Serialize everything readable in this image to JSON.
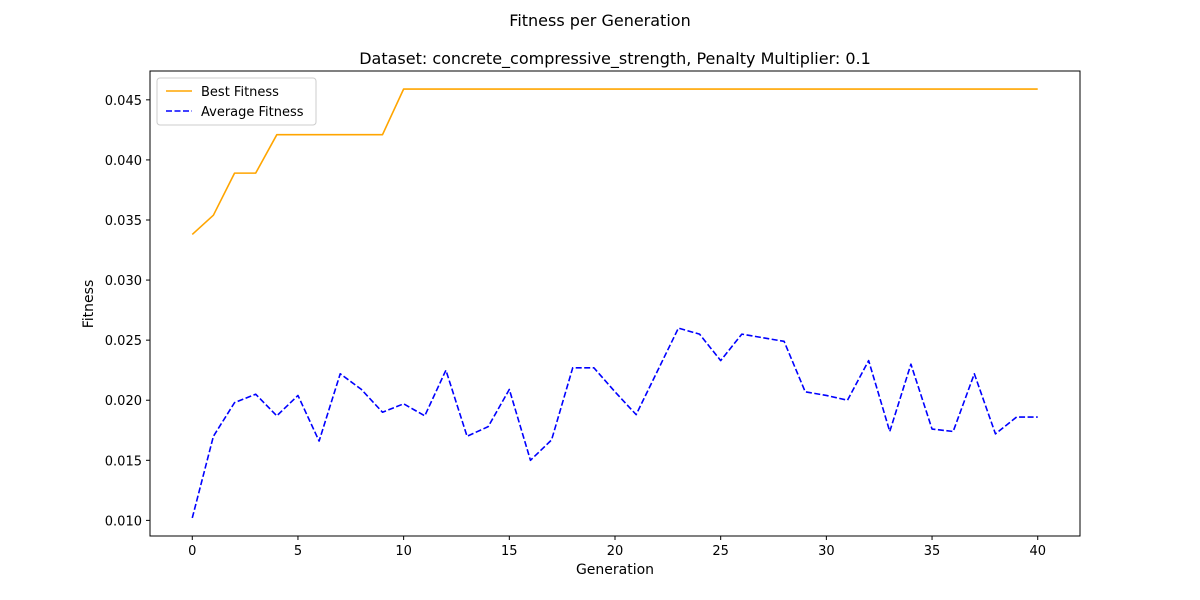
{
  "chart_data": {
    "type": "line",
    "suptitle": "Fitness per Generation",
    "title": "Dataset: concrete_compressive_strength, Penalty Multiplier: 0.1",
    "xlabel": "Generation",
    "ylabel": "Fitness",
    "xlim": [
      -2,
      42
    ],
    "ylim": [
      0.0087,
      0.0474
    ],
    "xticks": [
      0,
      5,
      10,
      15,
      20,
      25,
      30,
      35,
      40
    ],
    "xtick_labels": [
      "0",
      "5",
      "10",
      "15",
      "20",
      "25",
      "30",
      "35",
      "40"
    ],
    "yticks": [
      0.01,
      0.015,
      0.02,
      0.025,
      0.03,
      0.035,
      0.04,
      0.045
    ],
    "ytick_labels": [
      "0.010",
      "0.015",
      "0.020",
      "0.025",
      "0.030",
      "0.035",
      "0.040",
      "0.045"
    ],
    "grid": false,
    "legend_position": "upper-left",
    "x": [
      0,
      1,
      2,
      3,
      4,
      5,
      6,
      7,
      8,
      9,
      10,
      11,
      12,
      13,
      14,
      15,
      16,
      17,
      18,
      19,
      20,
      21,
      22,
      23,
      24,
      25,
      26,
      27,
      28,
      29,
      30,
      31,
      32,
      33,
      34,
      35,
      36,
      37,
      38,
      39,
      40
    ],
    "series": [
      {
        "name": "Best Fitness",
        "color": "#ffa500",
        "style": "solid",
        "values": [
          0.0338,
          0.0354,
          0.0389,
          0.0389,
          0.0421,
          0.0421,
          0.0421,
          0.0421,
          0.0421,
          0.0421,
          0.0459,
          0.0459,
          0.0459,
          0.0459,
          0.0459,
          0.0459,
          0.0459,
          0.0459,
          0.0459,
          0.0459,
          0.0459,
          0.0459,
          0.0459,
          0.0459,
          0.0459,
          0.0459,
          0.0459,
          0.0459,
          0.0459,
          0.0459,
          0.0459,
          0.0459,
          0.0459,
          0.0459,
          0.0459,
          0.0459,
          0.0459,
          0.0459,
          0.0459,
          0.0459,
          0.0459
        ]
      },
      {
        "name": "Average Fitness",
        "color": "#0000ff",
        "style": "dashed",
        "values": [
          0.0102,
          0.017,
          0.0198,
          0.0205,
          0.0187,
          0.0204,
          0.0166,
          0.0222,
          0.0209,
          0.019,
          0.0197,
          0.0187,
          0.0225,
          0.017,
          0.0178,
          0.0209,
          0.015,
          0.0167,
          0.0227,
          0.0227,
          0.0207,
          0.0188,
          0.0224,
          0.026,
          0.0255,
          0.0233,
          0.0255,
          0.0252,
          0.0249,
          0.0207,
          0.0204,
          0.02,
          0.0233,
          0.0174,
          0.023,
          0.0176,
          0.0174,
          0.0222,
          0.0172,
          0.0186,
          0.0186
        ]
      }
    ]
  }
}
